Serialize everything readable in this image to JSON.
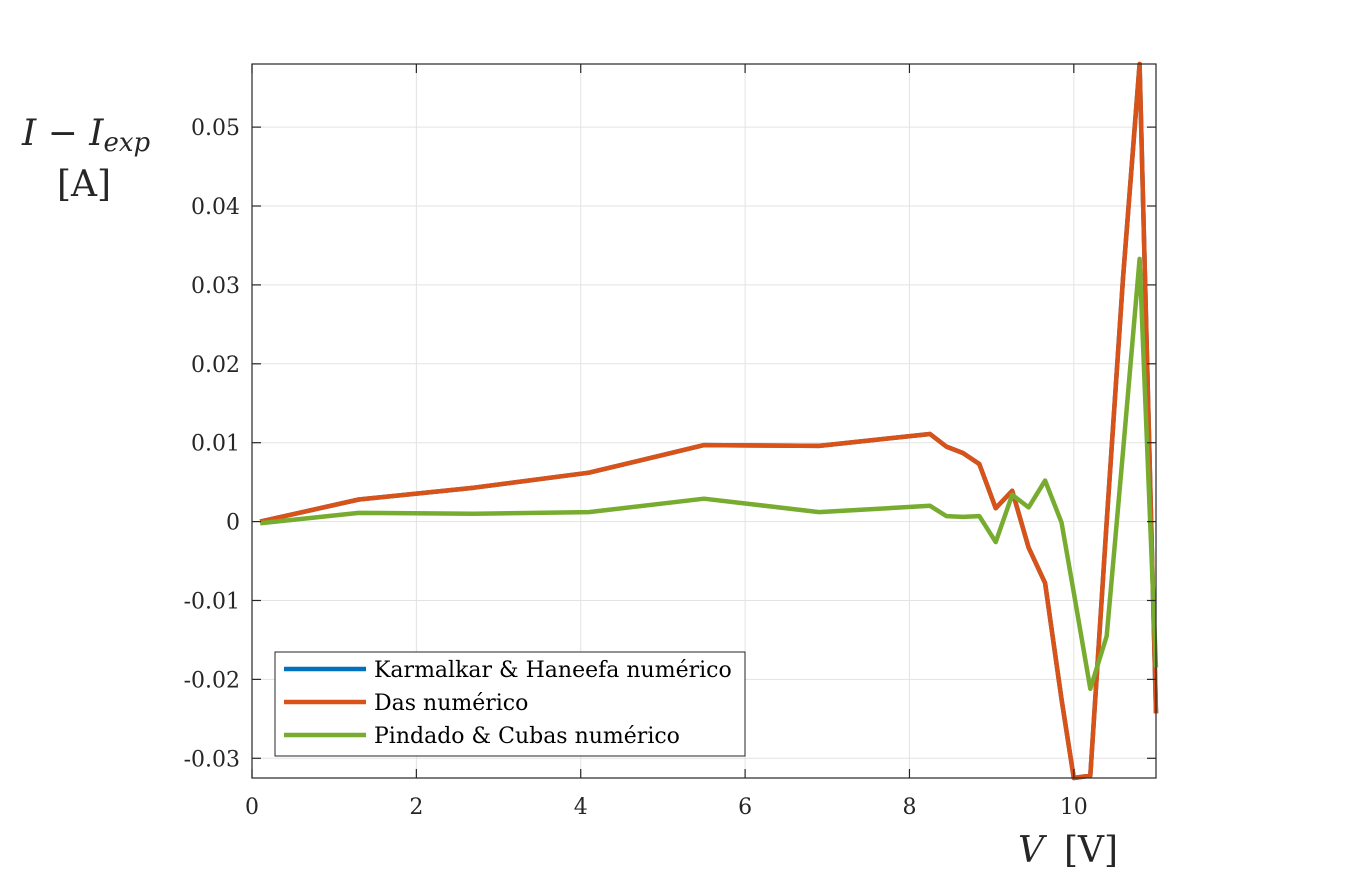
{
  "chart_data": {
    "type": "line",
    "xlabel": {
      "var": "V",
      "unit": "[V]"
    },
    "ylabel": {
      "main": "I − I",
      "sub": "exp",
      "unit": "[A]"
    },
    "xlim": [
      0,
      11
    ],
    "ylim": [
      -0.0325,
      0.058
    ],
    "xticks": [
      0,
      2,
      4,
      6,
      8,
      10
    ],
    "xtick_labels": [
      "0",
      "2",
      "4",
      "6",
      "8",
      "10"
    ],
    "yticks": [
      -0.03,
      -0.02,
      -0.01,
      0,
      0.01,
      0.02,
      0.03,
      0.04,
      0.05
    ],
    "ytick_labels": [
      "-0.03",
      "-0.02",
      "-0.01",
      "0",
      "0.01",
      "0.02",
      "0.03",
      "0.04",
      "0.05"
    ],
    "grid": true,
    "legend_position": "bottom-left",
    "series": [
      {
        "name": "Karmalkar & Haneefa numérico",
        "color": "#0072BD",
        "x": [
          0.1,
          1.3,
          2.7,
          4.1,
          5.5,
          6.9,
          8.25,
          8.45,
          8.65,
          8.85,
          9.05,
          9.25,
          9.45,
          9.65,
          9.85,
          10.0,
          10.2,
          10.4,
          10.6,
          10.8,
          11.0
        ],
        "y": [
          0.0,
          0.0028,
          0.0043,
          0.0062,
          0.0097,
          0.0096,
          0.0111,
          0.0095,
          0.0087,
          0.0073,
          0.0017,
          0.0039,
          -0.0033,
          -0.0078,
          -0.0225,
          -0.0325,
          -0.0322,
          0.0,
          0.031,
          0.058,
          -0.0243
        ]
      },
      {
        "name": "Das numérico",
        "color": "#D95319",
        "x": [
          0.1,
          1.3,
          2.7,
          4.1,
          5.5,
          6.9,
          8.25,
          8.45,
          8.65,
          8.85,
          9.05,
          9.25,
          9.45,
          9.65,
          9.85,
          10.0,
          10.2,
          10.4,
          10.6,
          10.8,
          11.0
        ],
        "y": [
          0.0,
          0.0028,
          0.0043,
          0.0062,
          0.0097,
          0.0096,
          0.0111,
          0.0095,
          0.0087,
          0.0073,
          0.0017,
          0.0039,
          -0.0033,
          -0.0078,
          -0.0225,
          -0.0325,
          -0.0322,
          0.0,
          0.031,
          0.058,
          -0.0243
        ]
      },
      {
        "name": "Pindado & Cubas numérico",
        "color": "#77AC30",
        "x": [
          0.1,
          1.3,
          2.7,
          4.1,
          5.5,
          6.9,
          8.25,
          8.45,
          8.65,
          8.85,
          9.05,
          9.25,
          9.45,
          9.65,
          9.85,
          10.0,
          10.2,
          10.4,
          10.6,
          10.8,
          11.0
        ],
        "y": [
          -0.0002,
          0.0011,
          0.001,
          0.0012,
          0.0029,
          0.0012,
          0.002,
          0.0007,
          0.0006,
          0.0007,
          -0.0026,
          0.0034,
          0.0018,
          0.0052,
          -0.0001,
          -0.009,
          -0.0212,
          -0.0145,
          0.009,
          0.0333,
          -0.0185
        ]
      }
    ]
  }
}
